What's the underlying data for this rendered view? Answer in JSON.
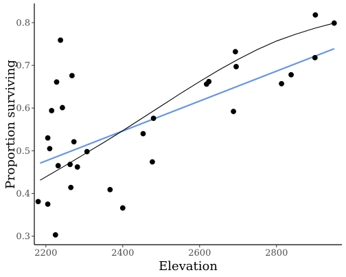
{
  "chart_data": {
    "type": "scatter",
    "title": "",
    "xlabel": "Elevation",
    "ylabel": "Proportion surviving",
    "xlim": [
      2170,
      2970
    ],
    "ylim": [
      0.28,
      0.845
    ],
    "xticks": [
      2200,
      2400,
      2600,
      2800
    ],
    "yticks": [
      0.3,
      0.4,
      0.5,
      0.6,
      0.7,
      0.8
    ],
    "xtick_labels": [
      "2200",
      "2400",
      "2600",
      "2800"
    ],
    "ytick_labels": [
      "0.3",
      "0.4",
      "0.5",
      "0.6",
      "0.7",
      "0.8"
    ],
    "grid": false,
    "points": [
      {
        "x": 2180,
        "y": 0.381
      },
      {
        "x": 2205,
        "y": 0.375
      },
      {
        "x": 2205,
        "y": 0.53
      },
      {
        "x": 2210,
        "y": 0.505
      },
      {
        "x": 2215,
        "y": 0.594
      },
      {
        "x": 2225,
        "y": 0.303
      },
      {
        "x": 2228,
        "y": 0.661
      },
      {
        "x": 2232,
        "y": 0.465
      },
      {
        "x": 2238,
        "y": 0.759
      },
      {
        "x": 2243,
        "y": 0.601
      },
      {
        "x": 2263,
        "y": 0.468
      },
      {
        "x": 2265,
        "y": 0.414
      },
      {
        "x": 2268,
        "y": 0.676
      },
      {
        "x": 2273,
        "y": 0.521
      },
      {
        "x": 2282,
        "y": 0.462
      },
      {
        "x": 2307,
        "y": 0.498
      },
      {
        "x": 2367,
        "y": 0.409
      },
      {
        "x": 2400,
        "y": 0.366
      },
      {
        "x": 2453,
        "y": 0.54
      },
      {
        "x": 2477,
        "y": 0.474
      },
      {
        "x": 2480,
        "y": 0.576
      },
      {
        "x": 2618,
        "y": 0.656
      },
      {
        "x": 2624,
        "y": 0.662
      },
      {
        "x": 2688,
        "y": 0.592
      },
      {
        "x": 2693,
        "y": 0.732
      },
      {
        "x": 2695,
        "y": 0.697
      },
      {
        "x": 2813,
        "y": 0.657
      },
      {
        "x": 2838,
        "y": 0.678
      },
      {
        "x": 2900,
        "y": 0.718
      },
      {
        "x": 2901,
        "y": 0.818
      },
      {
        "x": 2950,
        "y": 0.799
      }
    ],
    "series": [
      {
        "kind": "line",
        "color": "#6495ed",
        "x": [
          2185,
          2950
        ],
        "values": [
          0.471,
          0.739
        ]
      },
      {
        "kind": "line",
        "color": "#000000",
        "x": [
          2185,
          2250,
          2300,
          2350,
          2400,
          2450,
          2500,
          2550,
          2600,
          2650,
          2700,
          2750,
          2800,
          2850,
          2900,
          2950
        ],
        "values": [
          0.431,
          0.465,
          0.492,
          0.519,
          0.547,
          0.576,
          0.605,
          0.634,
          0.662,
          0.689,
          0.714,
          0.737,
          0.757,
          0.773,
          0.787,
          0.799
        ]
      }
    ],
    "point_color": "#000000"
  }
}
